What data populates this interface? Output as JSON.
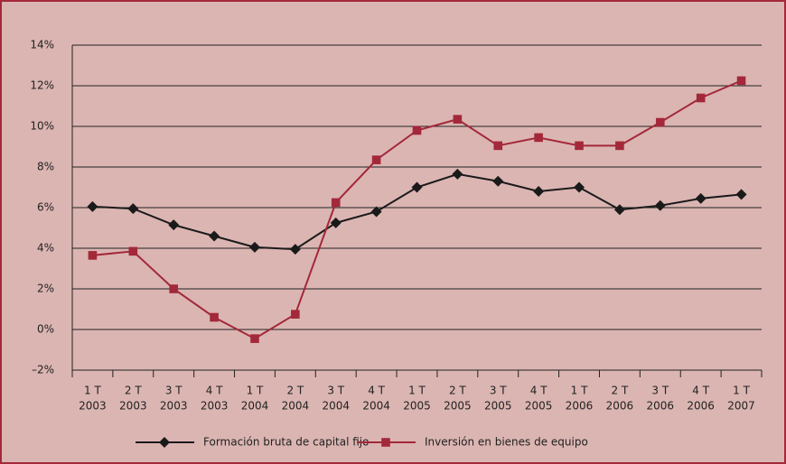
{
  "chart_data": {
    "type": "line",
    "categories": [
      [
        "1 T",
        "2003"
      ],
      [
        "2 T",
        "2003"
      ],
      [
        "3 T",
        "2003"
      ],
      [
        "4 T",
        "2003"
      ],
      [
        "1 T",
        "2004"
      ],
      [
        "2 T",
        "2004"
      ],
      [
        "3 T",
        "2004"
      ],
      [
        "4 T",
        "2004"
      ],
      [
        "1 T",
        "2005"
      ],
      [
        "2 T",
        "2005"
      ],
      [
        "3 T",
        "2005"
      ],
      [
        "4 T",
        "2005"
      ],
      [
        "1 T",
        "2006"
      ],
      [
        "2 T",
        "2006"
      ],
      [
        "3 T",
        "2006"
      ],
      [
        "4 T",
        "2006"
      ],
      [
        "1 T",
        "2007"
      ]
    ],
    "series": [
      {
        "name": "Formación bruta de capital fijo",
        "color": "#1a1a1a",
        "marker": "diamond",
        "values": [
          6.05,
          5.95,
          5.15,
          4.6,
          4.05,
          3.95,
          5.25,
          5.8,
          7.0,
          7.65,
          7.3,
          6.8,
          7.0,
          5.9,
          6.1,
          6.45,
          6.65
        ]
      },
      {
        "name": "Inversión en bienes de equipo",
        "color": "#a3283a",
        "marker": "square",
        "values": [
          3.65,
          3.85,
          2.0,
          0.6,
          -0.45,
          0.75,
          6.25,
          8.35,
          9.8,
          10.35,
          9.05,
          9.45,
          9.05,
          9.05,
          10.2,
          11.4,
          12.25
        ]
      }
    ],
    "ylim": [
      -2,
      14
    ],
    "yticks": [
      {
        "value": -2,
        "label": "–2%"
      },
      {
        "value": 0,
        "label": "0%"
      },
      {
        "value": 2,
        "label": "2%"
      },
      {
        "value": 4,
        "label": "4%"
      },
      {
        "value": 6,
        "label": "6%"
      },
      {
        "value": 8,
        "label": "8%"
      },
      {
        "value": 10,
        "label": "10%"
      },
      {
        "value": 12,
        "label": "12%"
      },
      {
        "value": 14,
        "label": "14%"
      }
    ],
    "grid": true,
    "legend": "bottom"
  }
}
